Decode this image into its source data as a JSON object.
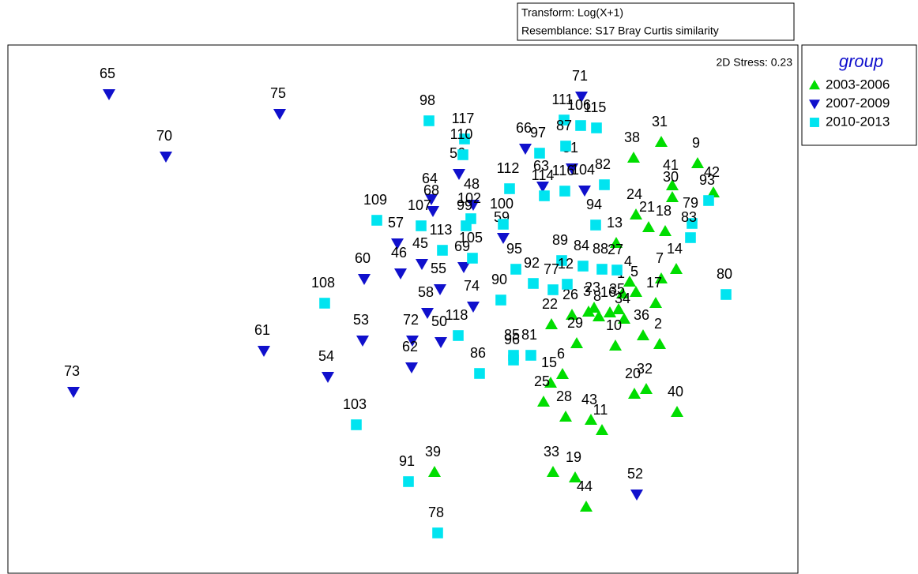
{
  "chart_data": {
    "type": "scatter",
    "header_lines": [
      "Transform: Log(X+1)",
      "Resemblance: S17 Bray Curtis similarity"
    ],
    "annotation": "2D Stress: 0.23",
    "legend_title": "group",
    "legend": "outside-right",
    "xlim": [
      10,
      1010
    ],
    "ylim": [
      0,
      670
    ],
    "series": [
      {
        "name": "2003-2006",
        "color": "#00dd00",
        "marker": "triangle-up",
        "labels": [
          "38",
          "31",
          "9",
          "41",
          "30",
          "42",
          "24",
          "21",
          "18",
          "13",
          "14",
          "7",
          "4",
          "5",
          "17",
          "1",
          "22",
          "26",
          "3",
          "8",
          "16",
          "35",
          "34",
          "29",
          "10",
          "36",
          "2",
          "15",
          "6",
          "25",
          "28",
          "43",
          "11",
          "20",
          "32",
          "40",
          "33",
          "19",
          "44",
          "39",
          "23"
        ],
        "x": [
          802,
          837,
          883,
          851,
          851,
          903,
          805,
          821,
          842,
          780,
          856,
          837,
          797,
          805,
          830,
          788,
          698,
          724,
          745,
          758,
          772,
          783,
          790,
          730,
          779,
          814,
          835,
          697,
          712,
          688,
          716,
          748,
          762,
          803,
          818,
          857,
          700,
          728,
          742,
          550,
          752
        ],
        "values": [
          527,
          547,
          520,
          492,
          477,
          483,
          455,
          439,
          434,
          419,
          386,
          374,
          370,
          357,
          343,
          355,
          316,
          328,
          332,
          326,
          331,
          335,
          323,
          292,
          289,
          302,
          291,
          242,
          253,
          218,
          199,
          195,
          182,
          228,
          234,
          205,
          129,
          122,
          85,
          129,
          337
        ]
      },
      {
        "name": "2007-2009",
        "color": "#1010cc",
        "marker": "triangle-down",
        "labels": [
          "65",
          "75",
          "70",
          "71",
          "66",
          "56",
          "48",
          "64",
          "68",
          "59",
          "57",
          "45",
          "46",
          "60",
          "69",
          "55",
          "58",
          "74",
          "72",
          "50",
          "62",
          "53",
          "61",
          "54",
          "73",
          "52",
          "63",
          "51",
          "104"
        ],
        "x": [
          138,
          354,
          210,
          736,
          665,
          581,
          599,
          546,
          548,
          637,
          503,
          534,
          507,
          461,
          587,
          557,
          541,
          599,
          522,
          558,
          521,
          459,
          334,
          415,
          93,
          806,
          687,
          724,
          740
        ],
        "values": [
          608,
          583,
          529,
          605,
          539,
          507,
          468,
          475,
          460,
          426,
          419,
          393,
          381,
          374,
          389,
          361,
          331,
          339,
          296,
          294,
          262,
          296,
          283,
          250,
          231,
          101,
          491,
          514,
          486
        ]
      },
      {
        "name": "2010-2013",
        "color": "#00e4f0",
        "marker": "square",
        "labels": [
          "98",
          "117",
          "110",
          "97",
          "111",
          "106",
          "115",
          "87",
          "112",
          "114",
          "116",
          "82",
          "94",
          "109",
          "107",
          "113",
          "99",
          "102",
          "100",
          "105",
          "95",
          "89",
          "84",
          "88",
          "92",
          "77",
          "12",
          "27",
          "90",
          "118",
          "85",
          "96",
          "81",
          "86",
          "108",
          "103",
          "91",
          "78",
          "80",
          "93",
          "79",
          "83"
        ],
        "x": [
          543,
          588,
          586,
          683,
          714,
          735,
          755,
          716,
          645,
          689,
          715,
          765,
          754,
          477,
          533,
          560,
          590,
          596,
          637,
          598,
          653,
          711,
          738,
          762,
          675,
          700,
          718,
          781,
          634,
          580,
          650,
          650,
          672,
          607,
          411,
          451,
          517,
          554,
          919,
          897,
          876,
          874
        ],
        "values": [
          574,
          551,
          531,
          533,
          575,
          568,
          565,
          542,
          488,
          479,
          485,
          493,
          442,
          448,
          441,
          410,
          441,
          450,
          443,
          400,
          386,
          397,
          390,
          386,
          368,
          360,
          367,
          385,
          347,
          302,
          277,
          271,
          277,
          254,
          343,
          189,
          117,
          52,
          354,
          473,
          444,
          426
        ]
      }
    ]
  }
}
